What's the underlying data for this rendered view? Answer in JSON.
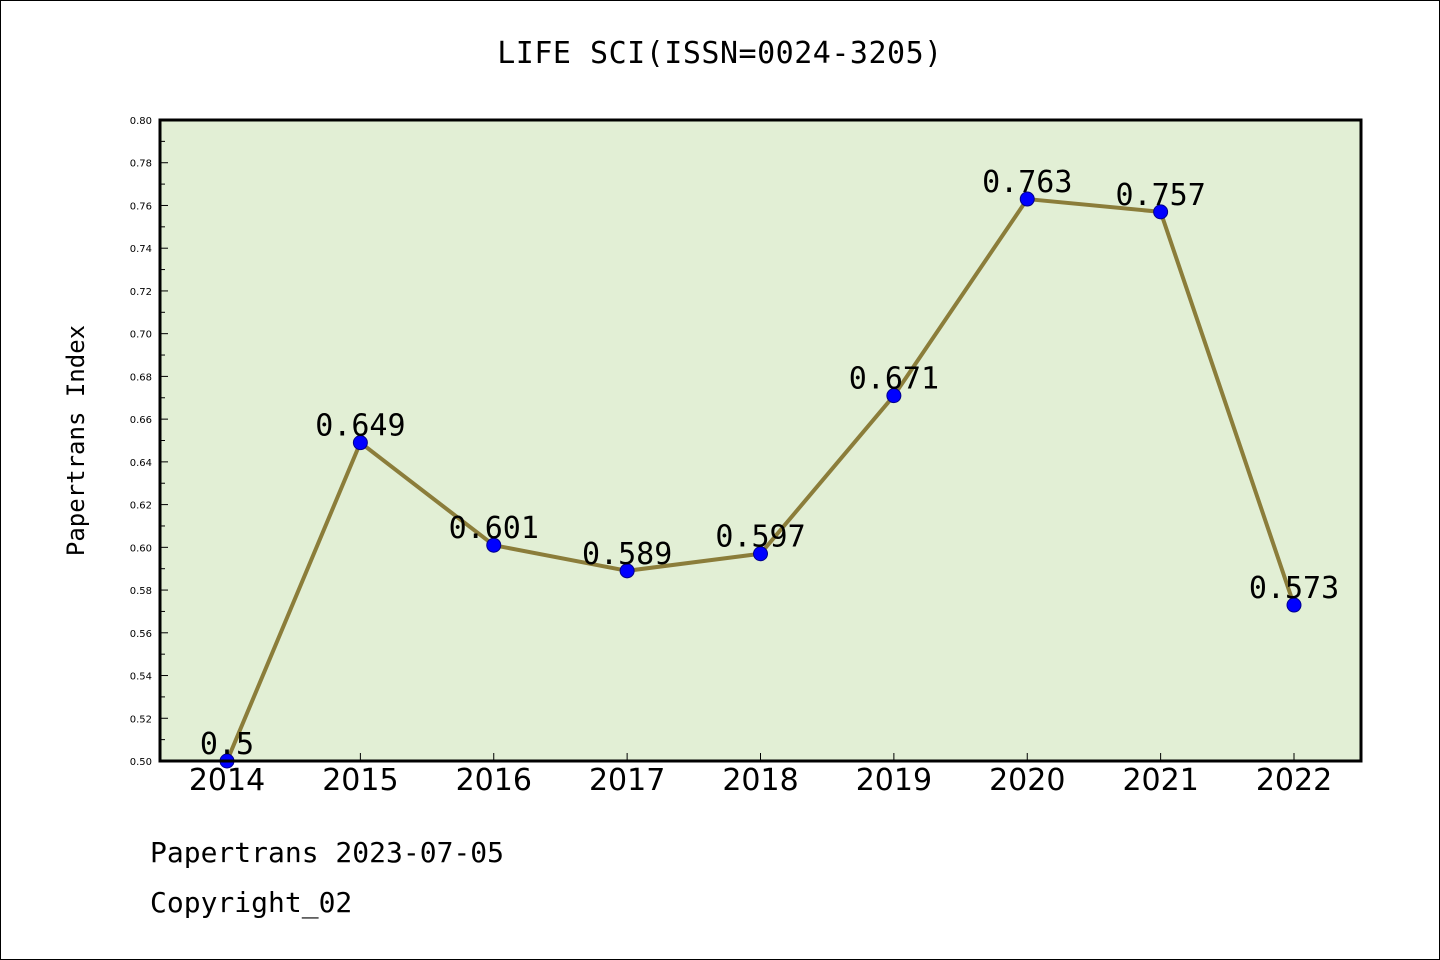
{
  "chart_data": {
    "type": "line",
    "title": "LIFE SCI(ISSN=0024-3205)",
    "xlabel": "",
    "ylabel": "Papertrans Index",
    "categories": [
      "2014",
      "2015",
      "2016",
      "2017",
      "2018",
      "2019",
      "2020",
      "2021",
      "2022"
    ],
    "series": [
      {
        "values": [
          0.5,
          0.649,
          0.601,
          0.589,
          0.597,
          0.671,
          0.763,
          0.757,
          0.573
        ],
        "data_labels": [
          "0.5",
          "0.649",
          "0.601",
          "0.589",
          "0.597",
          "0.671",
          "0.763",
          "0.757",
          "0.573"
        ],
        "line_color": "#8b7d3a",
        "marker_color": "#0000ff"
      }
    ],
    "ylim": [
      0.5,
      0.8
    ],
    "yticks": [
      "0.50",
      "0.52",
      "0.54",
      "0.56",
      "0.58",
      "0.60",
      "0.62",
      "0.64",
      "0.66",
      "0.68",
      "0.70",
      "0.72",
      "0.74",
      "0.76",
      "0.78",
      "0.80"
    ],
    "grid": false,
    "plot_background": "#e2efd5"
  },
  "footer": {
    "line1": "Papertrans 2023-07-05",
    "line2": "Copyright_02"
  }
}
